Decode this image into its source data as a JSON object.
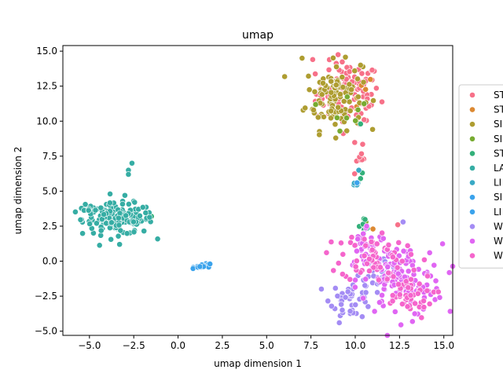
{
  "chart_data": {
    "type": "scatter",
    "title": "umap",
    "xlabel": "umap dimension 1",
    "ylabel": "umap dimension 2",
    "xlim": [
      -6.5,
      15.5
    ],
    "ylim": [
      -5.3,
      15.4
    ],
    "xticks": [
      -5.0,
      -2.5,
      0.0,
      2.5,
      5.0,
      7.5,
      10.0,
      12.5,
      15.0
    ],
    "xtick_labels": [
      "−5.0",
      "−2.5",
      "0.0",
      "2.5",
      "5.0",
      "7.5",
      "10.0",
      "12.5",
      "15.0"
    ],
    "yticks": [
      -5.0,
      -2.5,
      0.0,
      2.5,
      5.0,
      7.5,
      10.0,
      12.5,
      15.0
    ],
    "ytick_labels": [
      "−5.0",
      "−2.5",
      "0.0",
      "2.5",
      "5.0",
      "7.5",
      "10.0",
      "12.5",
      "15.0"
    ],
    "grid": false,
    "legend_position": "right-outside",
    "series": [
      {
        "name": "ST",
        "color": "#f77189",
        "clusters": [
          {
            "cx": 9.6,
            "cy": 12.0,
            "sx": 0.9,
            "sy": 1.1,
            "n": 110
          },
          {
            "cx": 10.2,
            "cy": 7.5,
            "sx": 0.15,
            "sy": 0.9,
            "n": 12
          }
        ],
        "points": [
          [
            7.6,
            14.4
          ],
          [
            10.5,
            10.1
          ],
          [
            12.4,
            2.6
          ]
        ]
      },
      {
        "name": "ST",
        "color": "#dc8932",
        "clusters": [
          {
            "cx": 9.8,
            "cy": 11.8,
            "sx": 0.7,
            "sy": 0.8,
            "n": 10
          }
        ],
        "points": [
          [
            11.0,
            2.3
          ]
        ]
      },
      {
        "name": "SI",
        "color": "#ae9d31",
        "clusters": [
          {
            "cx": 8.8,
            "cy": 11.8,
            "sx": 0.8,
            "sy": 1.2,
            "n": 110
          }
        ],
        "points": [
          [
            7.0,
            14.5
          ],
          [
            10.3,
            14.0
          ],
          [
            8.9,
            8.8
          ]
        ]
      },
      {
        "name": "SI",
        "color": "#77ab31",
        "clusters": [
          {
            "cx": 9.5,
            "cy": 11.0,
            "sx": 0.6,
            "sy": 0.8,
            "n": 8
          }
        ],
        "points": [
          [
            10.6,
            2.8
          ]
        ]
      },
      {
        "name": "ST",
        "color": "#33b07a",
        "clusters": [
          {
            "cx": 10.6,
            "cy": 2.6,
            "sx": 0.25,
            "sy": 0.25,
            "n": 6
          }
        ],
        "points": [
          [
            10.3,
            5.9
          ],
          [
            10.4,
            6.3
          ],
          [
            10.3,
            9.8
          ],
          [
            -1.5,
            3.2
          ]
        ]
      },
      {
        "name": "LA",
        "color": "#36ada4",
        "clusters": [
          {
            "cx": -3.4,
            "cy": 3.0,
            "sx": 1.0,
            "sy": 0.55,
            "n": 160
          },
          {
            "cx": -5.0,
            "cy": 3.7,
            "sx": 0.3,
            "sy": 0.2,
            "n": 12
          }
        ],
        "points": [
          [
            -2.6,
            7.0
          ],
          [
            -2.8,
            6.5
          ],
          [
            -2.8,
            6.2
          ],
          [
            -3.3,
            1.2
          ],
          [
            -3.0,
            4.7
          ]
        ]
      },
      {
        "name": "LI",
        "color": "#38a9c5",
        "clusters": [
          {
            "cx": 10.0,
            "cy": 5.3,
            "sx": 0.1,
            "sy": 0.2,
            "n": 6
          }
        ],
        "points": [
          [
            10.2,
            6.5
          ]
        ]
      },
      {
        "name": "SI",
        "color": "#3ba3ec",
        "clusters": [
          {
            "cx": 1.5,
            "cy": -0.35,
            "sx": 0.25,
            "sy": 0.07,
            "n": 8
          }
        ],
        "points": [
          [
            1.8,
            -0.2
          ]
        ]
      },
      {
        "name": "LI",
        "color": "#3ba3ec",
        "clusters": [
          {
            "cx": 1.3,
            "cy": -0.4,
            "sx": 0.2,
            "sy": 0.05,
            "n": 5
          }
        ],
        "points": [
          [
            10.1,
            5.6
          ]
        ]
      },
      {
        "name": "W",
        "color": "#a48cf4",
        "clusters": [
          {
            "cx": 9.8,
            "cy": -2.7,
            "sx": 0.6,
            "sy": 0.7,
            "n": 45
          },
          {
            "cx": 11.4,
            "cy": -0.8,
            "sx": 0.6,
            "sy": 0.7,
            "n": 25
          }
        ],
        "points": [
          [
            9.1,
            -4.4
          ],
          [
            12.7,
            2.8
          ]
        ]
      },
      {
        "name": "W",
        "color": "#e066f3",
        "clusters": [
          {
            "cx": 12.5,
            "cy": -1.4,
            "sx": 1.2,
            "sy": 1.3,
            "n": 120
          },
          {
            "cx": 10.7,
            "cy": 1.0,
            "sx": 0.6,
            "sy": 0.8,
            "n": 40
          }
        ],
        "points": [
          [
            14.2,
            0.6
          ],
          [
            13.9,
            -2.6
          ]
        ]
      },
      {
        "name": "W",
        "color": "#f565cc",
        "clusters": [
          {
            "cx": 11.0,
            "cy": 0.4,
            "sx": 0.9,
            "sy": 0.9,
            "n": 60
          },
          {
            "cx": 12.8,
            "cy": -2.5,
            "sx": 0.8,
            "sy": 0.8,
            "n": 45
          }
        ],
        "points": [
          [
            9.2,
            1.3
          ],
          [
            13.9,
            0.1
          ]
        ]
      }
    ]
  }
}
